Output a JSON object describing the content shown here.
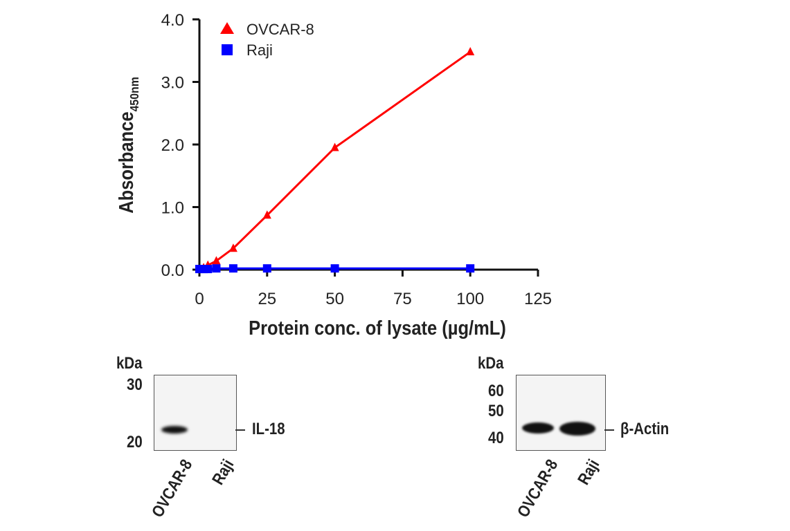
{
  "chart_data": {
    "type": "line",
    "xlabel": "Protein conc. of lysate (µg/mL)",
    "ylabel": "Absorbance",
    "ylabel_sub": "450nm",
    "xlim": [
      0,
      125
    ],
    "ylim": [
      0,
      4
    ],
    "xticks": [
      0,
      25,
      50,
      75,
      100,
      125
    ],
    "yticks": [
      "0.0",
      "1.0",
      "2.0",
      "3.0",
      "4.0"
    ],
    "grid": false,
    "legend_position": "top-left",
    "series": [
      {
        "name": "OVCAR-8",
        "color": "#ff0000",
        "marker": "triangle",
        "x": [
          1.56,
          3.125,
          6.25,
          12.5,
          25,
          50,
          100
        ],
        "y": [
          0.03,
          0.07,
          0.14,
          0.34,
          0.87,
          1.95,
          3.48
        ]
      },
      {
        "name": "Raji",
        "color": "#0000ff",
        "marker": "square",
        "x": [
          0,
          1.56,
          3.125,
          6.25,
          12.5,
          25,
          50,
          100
        ],
        "y": [
          0.01,
          0.01,
          0.01,
          0.02,
          0.02,
          0.02,
          0.02,
          0.02
        ]
      }
    ]
  },
  "blots": [
    {
      "kda_label": "kDa",
      "markers": [
        "30",
        "20"
      ],
      "target": "IL-18",
      "lanes": [
        "OVCAR-8",
        "Raji"
      ]
    },
    {
      "kda_label": "kDa",
      "markers": [
        "60",
        "50",
        "40"
      ],
      "target": "β-Actin",
      "lanes": [
        "OVCAR-8",
        "Raji"
      ]
    }
  ]
}
